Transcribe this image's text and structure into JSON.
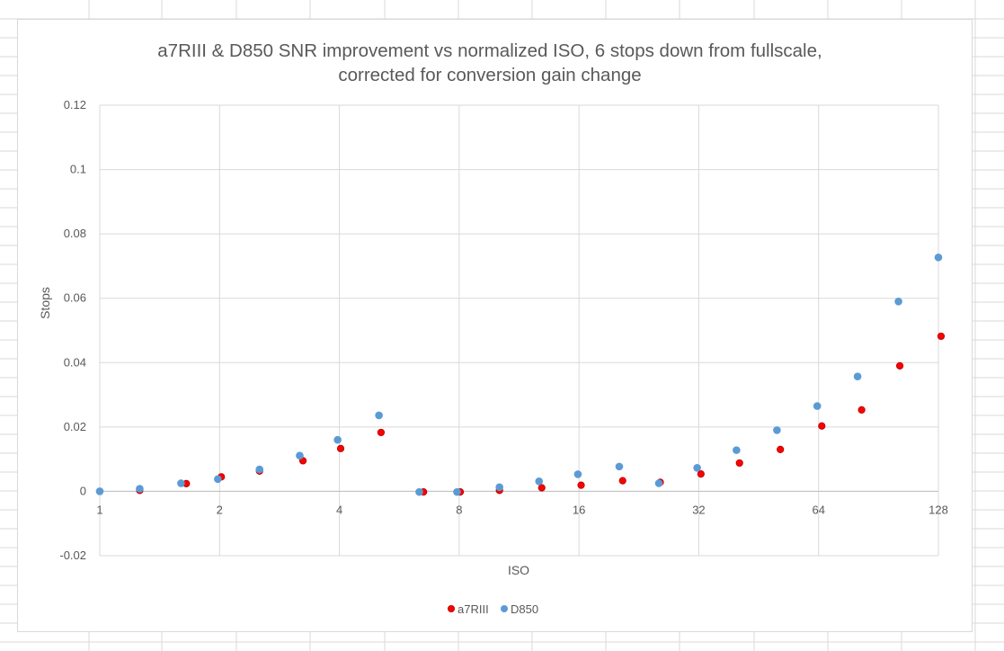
{
  "chart_data": {
    "type": "scatter",
    "title": [
      "a7RIII & D850 SNR improvement vs normalized ISO, 6 stops down from fullscale,",
      "corrected for conversion gain change"
    ],
    "xlabel": "ISO",
    "ylabel": "Stops",
    "x_scale": "log2",
    "xlim": [
      1,
      128
    ],
    "ylim": [
      -0.02,
      0.12
    ],
    "x_ticks": [
      1,
      2,
      4,
      8,
      16,
      32,
      64,
      128
    ],
    "x_tick_labels": [
      "1",
      "2",
      "4",
      "8",
      "16",
      "32",
      "64",
      "128"
    ],
    "y_ticks": [
      -0.02,
      0,
      0.02,
      0.04,
      0.06,
      0.08,
      0.1,
      0.12
    ],
    "y_tick_labels": [
      "-0.02",
      "0",
      "0.02",
      "0.04",
      "0.06",
      "0.08",
      "0.1",
      "0.12"
    ],
    "grid": true,
    "legend_position": "bottom",
    "series": [
      {
        "name": "a7RIII",
        "color": "#ff0000",
        "edge_color": "#c00000",
        "points": [
          [
            1,
            0
          ],
          [
            1.26,
            0.0003
          ],
          [
            1.65,
            0.0024
          ],
          [
            2.02,
            0.0045
          ],
          [
            2.52,
            0.0063
          ],
          [
            3.24,
            0.0095
          ],
          [
            4.03,
            0.0133
          ],
          [
            5.09,
            0.0183
          ],
          [
            6.51,
            -0.0002
          ],
          [
            8.05,
            -0.0002
          ],
          [
            10.1,
            0.0003
          ],
          [
            12.9,
            0.0011
          ],
          [
            16.2,
            0.0019
          ],
          [
            20.6,
            0.0033
          ],
          [
            25.6,
            0.0028
          ],
          [
            32.4,
            0.0054
          ],
          [
            40.5,
            0.0088
          ],
          [
            51.3,
            0.013
          ],
          [
            65.2,
            0.0203
          ],
          [
            82.1,
            0.0253
          ],
          [
            102.4,
            0.039
          ],
          [
            130,
            0.0482
          ]
        ]
      },
      {
        "name": "D850",
        "color": "#5b9bd5",
        "edge_color": "#5b9bd5",
        "points": [
          [
            1,
            0
          ],
          [
            1.26,
            0.0008
          ],
          [
            1.6,
            0.0025
          ],
          [
            1.98,
            0.0038
          ],
          [
            2.52,
            0.0068
          ],
          [
            3.18,
            0.0111
          ],
          [
            3.96,
            0.016
          ],
          [
            5.03,
            0.0236
          ],
          [
            6.35,
            -0.0002
          ],
          [
            7.9,
            -0.0002
          ],
          [
            10.1,
            0.0013
          ],
          [
            12.7,
            0.0031
          ],
          [
            15.9,
            0.0053
          ],
          [
            20.2,
            0.0077
          ],
          [
            25.4,
            0.0025
          ],
          [
            31.7,
            0.0073
          ],
          [
            39.8,
            0.0128
          ],
          [
            50.3,
            0.019
          ],
          [
            63.5,
            0.0265
          ],
          [
            80.2,
            0.0357
          ],
          [
            101.6,
            0.059
          ],
          [
            128,
            0.0727
          ]
        ]
      }
    ]
  }
}
